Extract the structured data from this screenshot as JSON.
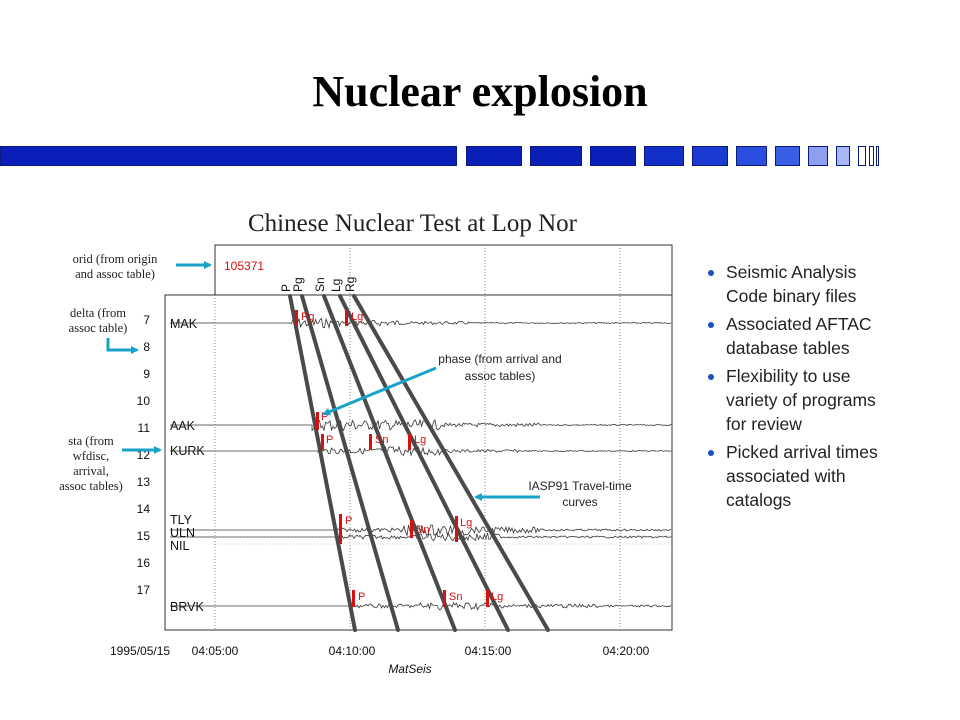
{
  "slide": {
    "title": "Nuclear explosion"
  },
  "figure": {
    "title": "Chinese Nuclear Test at Lop Nor",
    "orid_value": "105371",
    "phase_headers": [
      "P",
      "Pg",
      "Sn",
      "Lg",
      "Rg"
    ],
    "delta_ticks": [
      "7",
      "8",
      "9",
      "10",
      "11",
      "12",
      "13",
      "14",
      "15",
      "16",
      "17"
    ],
    "stations": [
      "MAK",
      "AAK",
      "KURK",
      "TLY",
      "ULN",
      "NIL",
      "BRVK"
    ],
    "time_date": "1995/05/15",
    "time_ticks": [
      "04:05:00",
      "04:10:00",
      "04:15:00",
      "04:20:00"
    ],
    "x_label": "MatSeis",
    "picks": [
      "Pg",
      "Lg",
      "P",
      "P",
      "Sn",
      "Lg",
      "P",
      "Sn",
      "Lg",
      "P",
      "Sn",
      "Lg"
    ]
  },
  "notes": {
    "orid": [
      "orid (from origin",
      "and assoc table)"
    ],
    "delta": [
      "delta (from",
      "assoc table)"
    ],
    "sta": [
      "sta (from",
      "wfdisc,",
      "arrival,",
      "assoc tables)"
    ],
    "phase": [
      "phase (from arrival and",
      "assoc tables)"
    ],
    "iasp": [
      "IASP91 Travel-time",
      "curves"
    ]
  },
  "bullets": [
    [
      "Seismic Analysis",
      "Code binary files"
    ],
    [
      "Associated AFTAC",
      "database tables"
    ],
    [
      "Flexibility to use",
      "variety of programs",
      "for review"
    ],
    [
      "Picked arrival times",
      "associated with",
      "catalogs"
    ]
  ],
  "colors": {
    "bar_dark": "#0a1fb8",
    "bar_mid": "#2a4fe0",
    "bar_light": "#8f9ff0",
    "pick_red": "#d81010",
    "arrow_teal": "#1aa3c8",
    "curve_gray": "#4a4a4a",
    "bullet_blue": "#1a4fc4"
  }
}
